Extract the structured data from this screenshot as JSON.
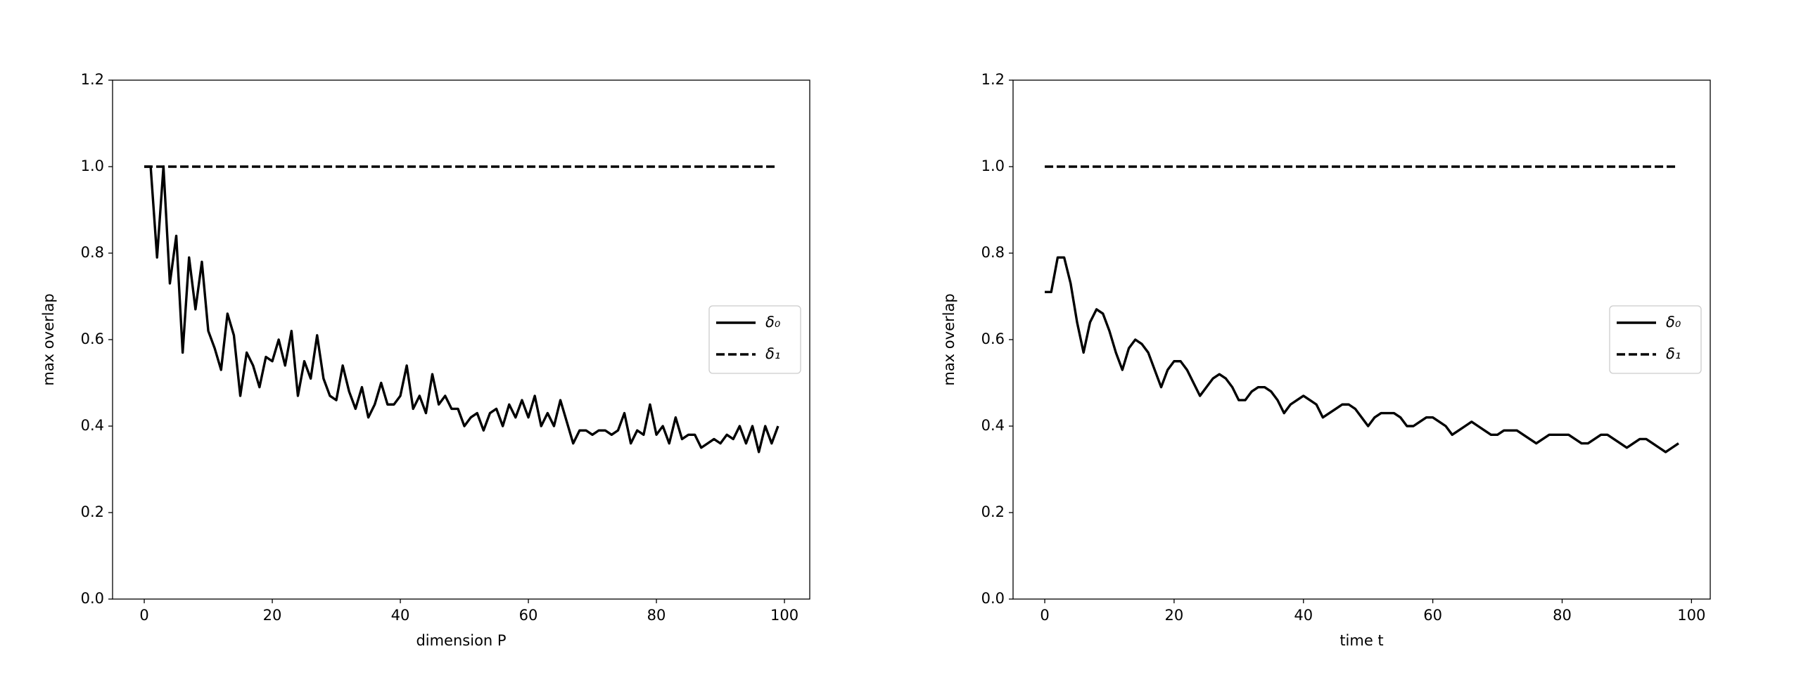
{
  "chart_data": [
    {
      "type": "line",
      "xlabel": "dimension P",
      "ylabel": "max overlap",
      "x": [
        0,
        1,
        2,
        3,
        4,
        5,
        6,
        7,
        8,
        9,
        10,
        11,
        12,
        13,
        14,
        15,
        16,
        17,
        18,
        19,
        20,
        21,
        22,
        23,
        24,
        25,
        26,
        27,
        28,
        29,
        30,
        31,
        32,
        33,
        34,
        35,
        36,
        37,
        38,
        39,
        40,
        41,
        42,
        43,
        44,
        45,
        46,
        47,
        48,
        49,
        50,
        51,
        52,
        53,
        54,
        55,
        56,
        57,
        58,
        59,
        60,
        61,
        62,
        63,
        64,
        65,
        66,
        67,
        68,
        69,
        70,
        71,
        72,
        73,
        74,
        75,
        76,
        77,
        78,
        79,
        80,
        81,
        82,
        83,
        84,
        85,
        86,
        87,
        88,
        89,
        90,
        91,
        92,
        93,
        94,
        95,
        96,
        97,
        98,
        99
      ],
      "series": [
        {
          "name": "δ₀",
          "color": "#000000",
          "linestyle": "solid",
          "values": [
            1.0,
            1.0,
            0.79,
            1.0,
            0.73,
            0.84,
            0.57,
            0.79,
            0.67,
            0.78,
            0.62,
            0.58,
            0.53,
            0.66,
            0.61,
            0.47,
            0.57,
            0.54,
            0.49,
            0.56,
            0.55,
            0.6,
            0.54,
            0.62,
            0.47,
            0.55,
            0.51,
            0.61,
            0.51,
            0.47,
            0.46,
            0.54,
            0.48,
            0.44,
            0.49,
            0.42,
            0.45,
            0.5,
            0.45,
            0.45,
            0.47,
            0.54,
            0.44,
            0.47,
            0.43,
            0.52,
            0.45,
            0.47,
            0.44,
            0.44,
            0.4,
            0.42,
            0.43,
            0.39,
            0.43,
            0.44,
            0.4,
            0.45,
            0.42,
            0.46,
            0.42,
            0.47,
            0.4,
            0.43,
            0.4,
            0.46,
            0.41,
            0.36,
            0.39,
            0.39,
            0.38,
            0.39,
            0.39,
            0.38,
            0.39,
            0.43,
            0.36,
            0.39,
            0.38,
            0.45,
            0.38,
            0.4,
            0.36,
            0.42,
            0.37,
            0.38,
            0.38,
            0.35,
            0.36,
            0.37,
            0.36,
            0.38,
            0.37,
            0.4,
            0.36,
            0.4,
            0.34,
            0.4,
            0.36,
            0.4
          ]
        },
        {
          "name": "δ₁",
          "color": "#000000",
          "linestyle": "dashed",
          "values": [
            1,
            1,
            1,
            1,
            1,
            1,
            1,
            1,
            1,
            1,
            1,
            1,
            1,
            1,
            1,
            1,
            1,
            1,
            1,
            1,
            1,
            1,
            1,
            1,
            1,
            1,
            1,
            1,
            1,
            1,
            1,
            1,
            1,
            1,
            1,
            1,
            1,
            1,
            1,
            1,
            1,
            1,
            1,
            1,
            1,
            1,
            1,
            1,
            1,
            1,
            1,
            1,
            1,
            1,
            1,
            1,
            1,
            1,
            1,
            1,
            1,
            1,
            1,
            1,
            1,
            1,
            1,
            1,
            1,
            1,
            1,
            1,
            1,
            1,
            1,
            1,
            1,
            1,
            1,
            1,
            1,
            1,
            1,
            1,
            1,
            1,
            1,
            1,
            1,
            1,
            1,
            1,
            1,
            1,
            1,
            1,
            1,
            1,
            1,
            1
          ]
        }
      ],
      "xlim": [
        -4.95,
        103.95
      ],
      "xticks": [
        0,
        20,
        40,
        60,
        80,
        100
      ],
      "ylim": [
        0,
        1.2
      ],
      "yticks": [
        {
          "value": 0,
          "label": "0.0"
        },
        0.2,
        0.4,
        0.6,
        0.8,
        {
          "value": 1,
          "label": "1.0"
        },
        1.2
      ],
      "legend": "center right"
    },
    {
      "type": "line",
      "xlabel": "time t",
      "ylabel": "max overlap",
      "x": [
        0,
        1,
        2,
        3,
        4,
        5,
        6,
        7,
        8,
        9,
        10,
        11,
        12,
        13,
        14,
        15,
        16,
        17,
        18,
        19,
        20,
        21,
        22,
        23,
        24,
        25,
        26,
        27,
        28,
        29,
        30,
        31,
        32,
        33,
        34,
        35,
        36,
        37,
        38,
        39,
        40,
        41,
        42,
        43,
        44,
        45,
        46,
        47,
        48,
        49,
        50,
        51,
        52,
        53,
        54,
        55,
        56,
        57,
        58,
        59,
        60,
        61,
        62,
        63,
        64,
        65,
        66,
        67,
        68,
        69,
        70,
        71,
        72,
        73,
        74,
        75,
        76,
        77,
        78,
        79,
        80,
        81,
        82,
        83,
        84,
        85,
        86,
        87,
        88,
        89,
        90,
        91,
        92,
        93,
        94,
        95,
        96,
        97,
        98
      ],
      "series": [
        {
          "name": "δ₀",
          "color": "#000000",
          "linestyle": "solid",
          "values": [
            0.71,
            0.71,
            0.79,
            0.79,
            0.73,
            0.64,
            0.57,
            0.64,
            0.67,
            0.66,
            0.62,
            0.57,
            0.53,
            0.58,
            0.6,
            0.59,
            0.57,
            0.53,
            0.49,
            0.53,
            0.55,
            0.55,
            0.53,
            0.5,
            0.47,
            0.49,
            0.51,
            0.52,
            0.51,
            0.49,
            0.46,
            0.46,
            0.48,
            0.49,
            0.49,
            0.48,
            0.46,
            0.43,
            0.45,
            0.46,
            0.47,
            0.46,
            0.45,
            0.42,
            0.43,
            0.44,
            0.45,
            0.45,
            0.44,
            0.42,
            0.4,
            0.42,
            0.43,
            0.43,
            0.43,
            0.42,
            0.4,
            0.4,
            0.41,
            0.42,
            0.42,
            0.41,
            0.4,
            0.38,
            0.39,
            0.4,
            0.41,
            0.4,
            0.39,
            0.38,
            0.38,
            0.39,
            0.39,
            0.39,
            0.38,
            0.37,
            0.36,
            0.37,
            0.38,
            0.38,
            0.38,
            0.38,
            0.37,
            0.36,
            0.36,
            0.37,
            0.38,
            0.38,
            0.37,
            0.36,
            0.35,
            0.36,
            0.37,
            0.37,
            0.36,
            0.35,
            0.34,
            0.35,
            0.36
          ]
        },
        {
          "name": "δ₁",
          "color": "#000000",
          "linestyle": "dashed",
          "values": [
            1,
            1,
            1,
            1,
            1,
            1,
            1,
            1,
            1,
            1,
            1,
            1,
            1,
            1,
            1,
            1,
            1,
            1,
            1,
            1,
            1,
            1,
            1,
            1,
            1,
            1,
            1,
            1,
            1,
            1,
            1,
            1,
            1,
            1,
            1,
            1,
            1,
            1,
            1,
            1,
            1,
            1,
            1,
            1,
            1,
            1,
            1,
            1,
            1,
            1,
            1,
            1,
            1,
            1,
            1,
            1,
            1,
            1,
            1,
            1,
            1,
            1,
            1,
            1,
            1,
            1,
            1,
            1,
            1,
            1,
            1,
            1,
            1,
            1,
            1,
            1,
            1,
            1,
            1,
            1,
            1,
            1,
            1,
            1,
            1,
            1,
            1,
            1,
            1,
            1,
            1,
            1,
            1,
            1,
            1,
            1,
            1,
            1,
            1
          ]
        }
      ],
      "xlim": [
        -4.9,
        102.9
      ],
      "xticks": [
        0,
        20,
        40,
        60,
        80,
        100
      ],
      "ylim": [
        0,
        1.2
      ],
      "yticks": [
        {
          "value": 0,
          "label": "0.0"
        },
        0.2,
        0.4,
        0.6,
        0.8,
        {
          "value": 1,
          "label": "1.0"
        },
        1.2
      ],
      "legend": "center right"
    }
  ]
}
